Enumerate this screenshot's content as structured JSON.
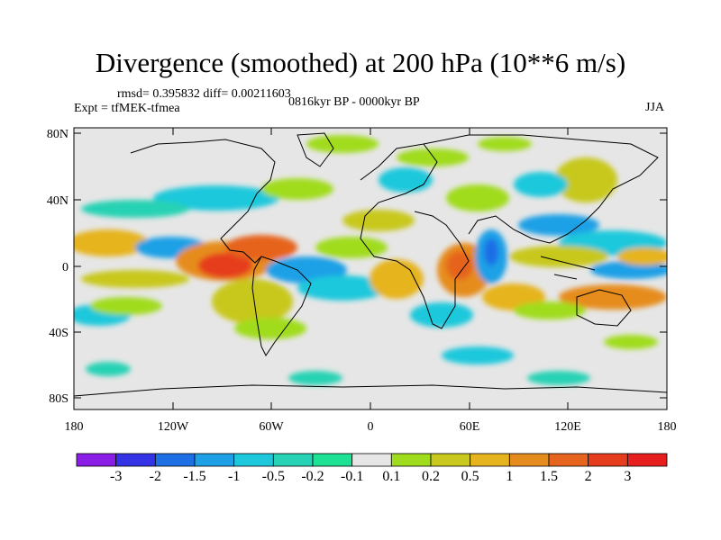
{
  "title": "Divergence (smoothed) at 200 hPa (10**6 m/s)",
  "stats": "rmsd= 0.395832 diff= 0.00211603",
  "experiment": "Expt = tfMEK-tfmea",
  "period": "0816kyr BP - 0000kyr BP",
  "season": "JJA",
  "axes": {
    "lon_labels": [
      "180",
      "120W",
      "60W",
      "0",
      "60E",
      "120E",
      "180"
    ],
    "lat_labels": [
      "80N",
      "40N",
      "0",
      "40S",
      "80S"
    ]
  },
  "colorbar": {
    "labels": [
      "-3",
      "-2",
      "-1.5",
      "-1",
      "-0.5",
      "-0.2",
      "-0.1",
      "0.1",
      "0.2",
      "0.5",
      "1",
      "1.5",
      "2",
      "3"
    ],
    "colors": [
      "#8a1ee6",
      "#3434e6",
      "#1e6ee6",
      "#1ea0e6",
      "#1ec8dc",
      "#28d2b4",
      "#1ee196",
      "#e6e6e6",
      "#a0dc1e",
      "#c8c81e",
      "#e6b41e",
      "#e68c1e",
      "#e6641e",
      "#e63c1e",
      "#e61e1e"
    ]
  }
}
